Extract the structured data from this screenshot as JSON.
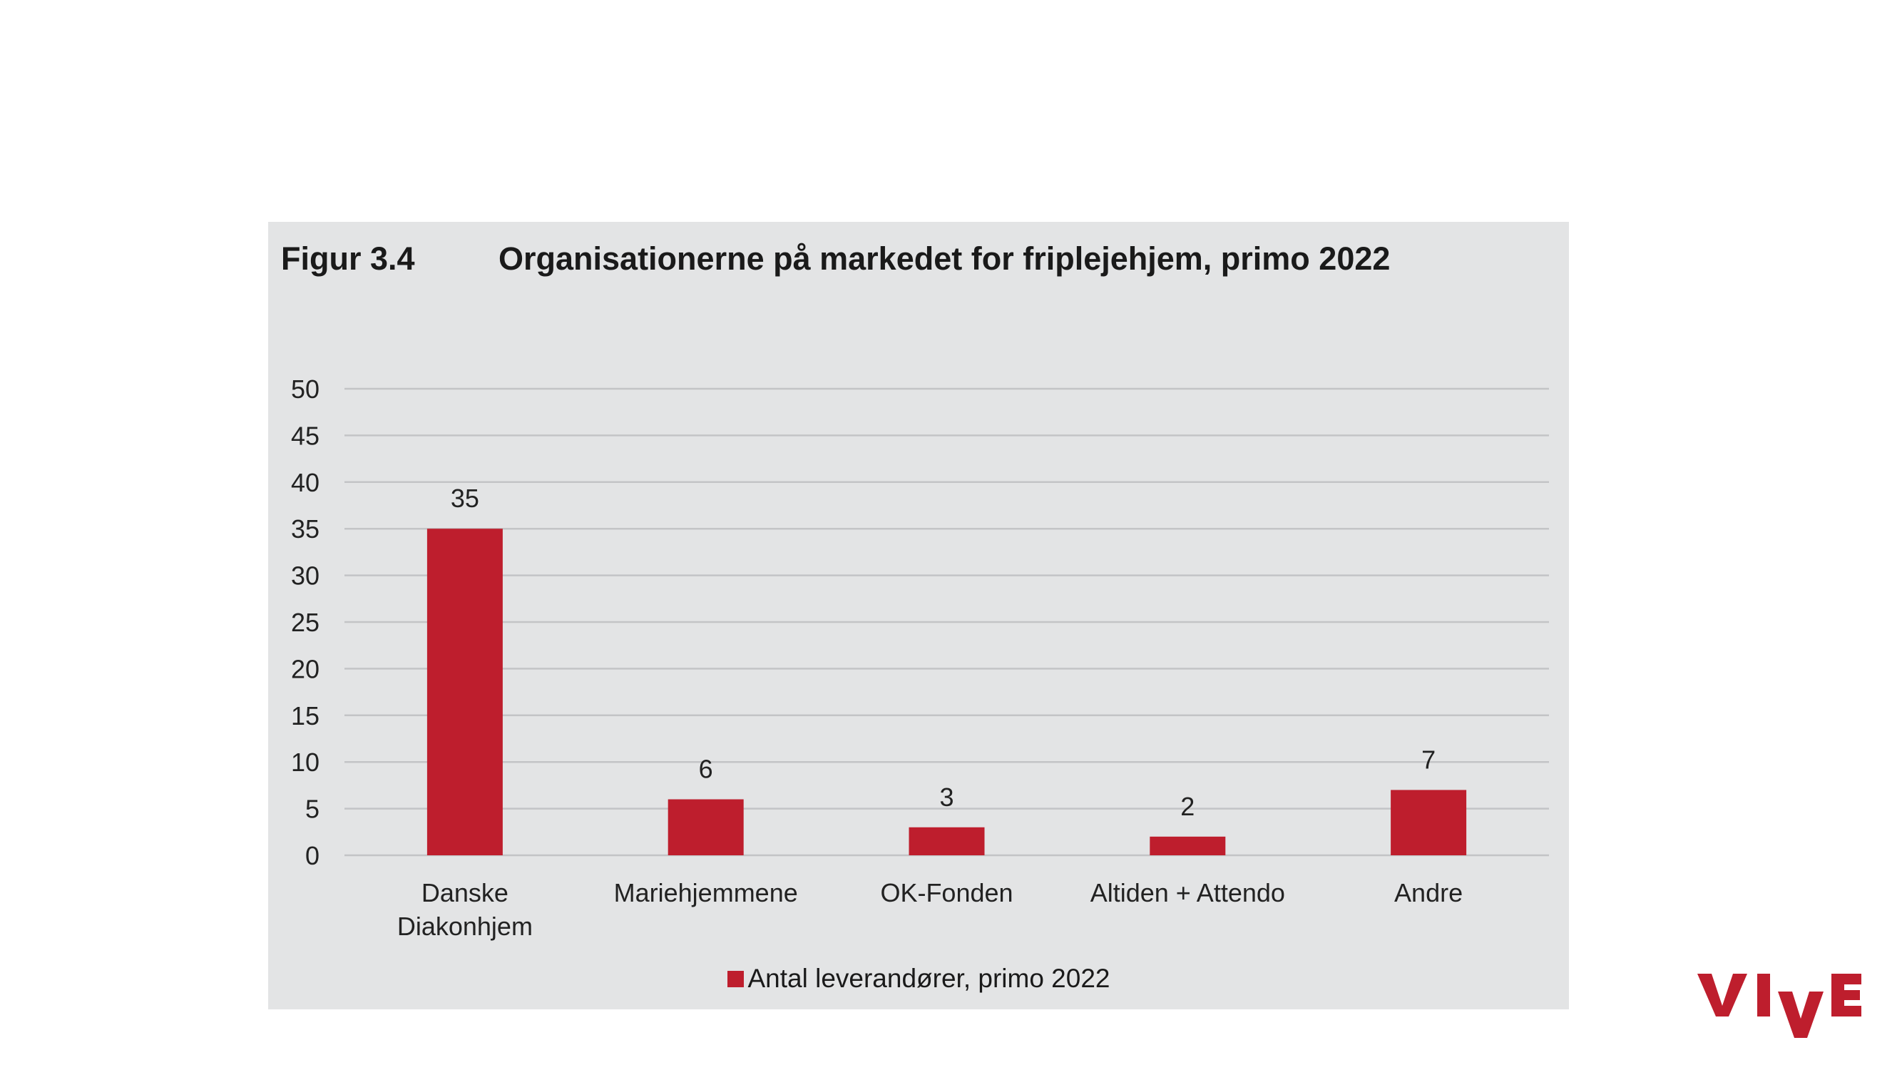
{
  "figure": {
    "number": "Figur 3.4",
    "title": "Organisationerne på markedet for friplejehjem, primo 2022"
  },
  "colors": {
    "bar": "#be1e2d",
    "panel": "#e3e4e5",
    "logo": "#be1e2d"
  },
  "logo": {
    "text": "VIVE"
  },
  "chart_data": {
    "type": "bar",
    "title": "Organisationerne på markedet for friplejehjem, primo 2022",
    "categories": [
      "Danske\nDiakonhjem",
      "Mariehjemmene",
      "OK-Fonden",
      "Altiden + Attendo",
      "Andre"
    ],
    "series": [
      {
        "name": "Antal leverandører, primo 2022",
        "values": [
          35,
          6,
          3,
          2,
          7
        ]
      }
    ],
    "data_labels": [
      "35",
      "6",
      "3",
      "2",
      "7"
    ],
    "xlabel": "",
    "ylabel": "",
    "ylim": [
      0,
      50
    ],
    "yticks": [
      0,
      5,
      10,
      15,
      20,
      25,
      30,
      35,
      40,
      45,
      50
    ],
    "grid": true,
    "legend": "bottom-center"
  }
}
